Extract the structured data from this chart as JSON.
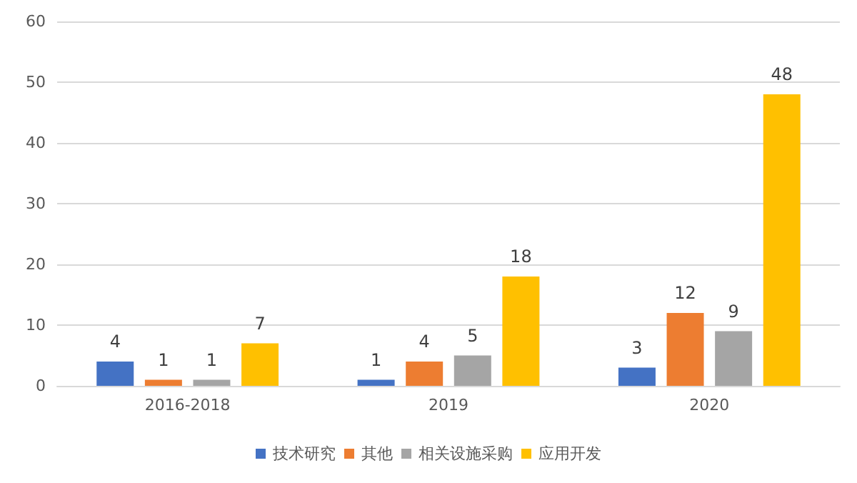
{
  "chart_data": {
    "type": "bar",
    "categories": [
      "2016-2018",
      "2019",
      "2020"
    ],
    "series": [
      {
        "name": "技术研究",
        "color": "#4472c4",
        "values": [
          4,
          1,
          3
        ]
      },
      {
        "name": "其他",
        "color": "#ed7d31",
        "values": [
          1,
          4,
          12
        ]
      },
      {
        "name": "相关设施采购",
        "color": "#a5a5a5",
        "values": [
          1,
          5,
          9
        ]
      },
      {
        "name": "应用开发",
        "color": "#ffc000",
        "values": [
          7,
          18,
          48
        ]
      }
    ],
    "ylim": [
      0,
      60
    ],
    "yticks": [
      0,
      10,
      20,
      30,
      40,
      50,
      60
    ],
    "grid": "y",
    "legend": "bottom",
    "data_labels": true
  }
}
